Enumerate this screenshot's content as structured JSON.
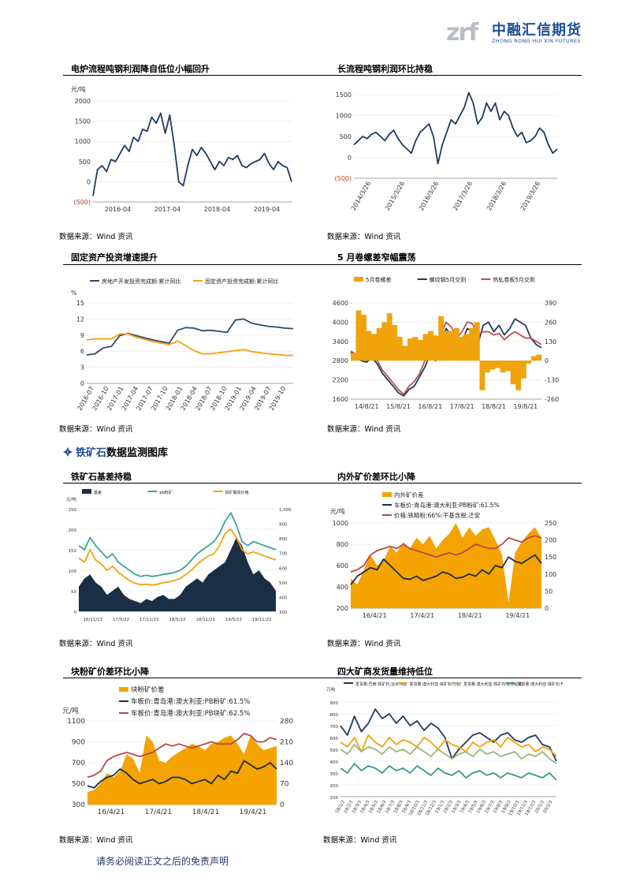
{
  "header": {
    "logo_mark": "zrf",
    "logo_cn": "中融汇信期货",
    "logo_en": "ZHONG RONG HUI XIN FUTURES"
  },
  "section": {
    "title_prefix": "铁矿石",
    "title_rest": "数据监测图库"
  },
  "footer": {
    "disclaimer": "请务必阅读正文之后的免责声明"
  },
  "charts": [
    {
      "id": "c1",
      "title": "电炉流程吨钢利润降自低位小幅回升",
      "source": "数据来源：Wind 资讯"
    },
    {
      "id": "c2",
      "title": "长流程吨钢利润环比持稳",
      "source": "数据来源：Wind 资讯"
    },
    {
      "id": "c3",
      "title": "固定资产投资增速提升",
      "source": "数据来源：Wind 资讯"
    },
    {
      "id": "c4",
      "title": "5 月卷螺差窄幅震荡",
      "source": "数据来源：Wind 资讯"
    },
    {
      "id": "c5",
      "title": "铁矿石基差持稳",
      "source": "数据来源：Wind 资讯"
    },
    {
      "id": "c6",
      "title": "内外矿价差环比小降",
      "source": "数据来源：Wind 资讯"
    },
    {
      "id": "c7",
      "title": "块粉矿价差环比小降",
      "source": "数据来源：Wind 资讯"
    },
    {
      "id": "c8",
      "title": "四大矿商发货量维持低位",
      "source": "数据来源：Wind 资讯"
    }
  ],
  "chart_data": [
    {
      "id": "c1",
      "type": "line",
      "unit": "元/吨",
      "ylim": [
        -500,
        2000
      ],
      "yticks": [
        "2000",
        "1500",
        "1000",
        "500",
        "0",
        "(500)"
      ],
      "xticks": [
        "2016-04",
        "2017-04",
        "2018-04",
        "2019-04"
      ],
      "series": [
        {
          "color": "#1f3b5c",
          "values": [
            -350,
            300,
            400,
            250,
            550,
            500,
            700,
            900,
            750,
            1100,
            1000,
            1300,
            1250,
            1600,
            1450,
            1700,
            1200,
            1650,
            900,
            0,
            -100,
            400,
            800,
            650,
            850,
            700,
            500,
            300,
            500,
            400,
            600,
            550,
            650,
            400,
            350,
            450,
            500,
            550,
            700,
            450,
            300,
            500,
            400,
            350,
            0
          ]
        }
      ]
    },
    {
      "id": "c2",
      "type": "line",
      "ylim": [
        -500,
        1500
      ],
      "yticks": [
        "1500",
        "1000",
        "500",
        "0",
        "(500)"
      ],
      "xticks": [
        "2014/3/26",
        "2015/3/26",
        "2016/3/26",
        "2017/3/26",
        "2018/3/26",
        "2019/3/26"
      ],
      "series": [
        {
          "color": "#1f3b5c",
          "values": [
            300,
            400,
            500,
            450,
            550,
            600,
            500,
            400,
            550,
            650,
            450,
            300,
            200,
            100,
            400,
            600,
            700,
            800,
            500,
            -150,
            300,
            600,
            900,
            800,
            1000,
            1200,
            1550,
            1300,
            800,
            950,
            1300,
            1100,
            1300,
            900,
            1100,
            1000,
            700,
            500,
            600,
            350,
            400,
            500,
            700,
            600,
            300,
            100,
            200
          ]
        }
      ]
    },
    {
      "id": "c3",
      "type": "line",
      "unit": "%",
      "ylim": [
        0,
        15
      ],
      "yticks": [
        "15",
        "12",
        "9",
        "6",
        "3",
        "0"
      ],
      "xticks": [
        "2016-07",
        "2016-10",
        "2017-01",
        "2017-04",
        "2017-07",
        "2017-10",
        "2018-01",
        "2018-04",
        "2018-07",
        "2018-10",
        "2019-01",
        "2019-04",
        "2019-07",
        "2019-10"
      ],
      "legend": [
        "房地产开发投资完成额:累计同比",
        "固定资产投资完成额:累计同比"
      ],
      "series": [
        {
          "name": "房地产开发投资完成额:累计同比",
          "color": "#2e4b6b",
          "values": [
            5.3,
            5.5,
            6.6,
            6.9,
            8.9,
            9.3,
            8.9,
            8.5,
            8.1,
            7.8,
            7.5,
            9.9,
            10.4,
            10.3,
            9.8,
            9.9,
            9.7,
            9.5,
            11.8,
            12.0,
            11.2,
            10.9,
            10.6,
            10.5,
            10.3,
            10.2
          ]
        },
        {
          "name": "固定资产投资完成额:累计同比",
          "color": "#f0a30a",
          "values": [
            8.1,
            8.3,
            8.3,
            8.3,
            9.2,
            9.2,
            8.6,
            8.2,
            7.8,
            7.5,
            7.2,
            7.9,
            7.0,
            6.1,
            5.5,
            5.5,
            5.7,
            5.9,
            6.1,
            6.3,
            5.9,
            5.7,
            5.5,
            5.4,
            5.2,
            5.2
          ]
        }
      ]
    },
    {
      "id": "c4",
      "type": "line+bar",
      "ylim": [
        1600,
        4600
      ],
      "yticks": [
        "4600",
        "4000",
        "3400",
        "2800",
        "2200",
        "1600"
      ],
      "y2ticks": [
        "390",
        "260",
        "130",
        "0",
        "-130",
        "-260"
      ],
      "xticks": [
        "14/8/21",
        "15/8/21",
        "16/8/21",
        "17/8/21",
        "18/8/21",
        "19/8/21"
      ],
      "legend": [
        "5月卷螺差",
        "螺纹钢5月交割",
        "热轧卷板5月交割"
      ],
      "series": [
        {
          "name": "螺纹钢5月交割",
          "color": "#1f3b5c",
          "values": [
            3050,
            2900,
            2800,
            2750,
            2900,
            2700,
            2400,
            2200,
            2000,
            1800,
            1700,
            1900,
            2000,
            2300,
            2600,
            3000,
            2800,
            3300,
            3800,
            3600,
            3200,
            3400,
            3800,
            3700,
            3300,
            3900,
            4000,
            3700,
            3900,
            3600,
            3800,
            4100,
            4000,
            3900,
            3500,
            3300,
            3200
          ]
        },
        {
          "name": "热轧卷板5月交割",
          "color": "#c0504d",
          "values": [
            3100,
            3000,
            2900,
            2800,
            2950,
            2800,
            2500,
            2300,
            2100,
            1900,
            1750,
            2000,
            2150,
            2400,
            2800,
            3100,
            3000,
            3600,
            4000,
            3850,
            3500,
            3700,
            4000,
            3950,
            3600,
            3700,
            3700,
            3600,
            3650,
            3450,
            3600,
            3700,
            3600,
            3500,
            3500,
            3400,
            3300
          ]
        },
        {
          "name": "5月卷螺差",
          "color": "#f0a30a",
          "type": "bar",
          "values": [
            50,
            340,
            310,
            200,
            180,
            220,
            260,
            320,
            240,
            160,
            100,
            150,
            160,
            140,
            180,
            200,
            170,
            300,
            200,
            200,
            220,
            160,
            180,
            220,
            260,
            -200,
            -80,
            -60,
            -50,
            -80,
            -70,
            -160,
            -200,
            -120,
            -20,
            30,
            40
          ]
        }
      ]
    },
    {
      "id": "c5",
      "type": "line+area",
      "unit": "元/吨",
      "ylim": [
        0,
        250
      ],
      "yticks": [
        "250",
        "200",
        "150",
        "100",
        "50",
        "0"
      ],
      "y2ticks": [
        "1,000",
        "900",
        "800",
        "700",
        "600",
        "500",
        "400",
        "300"
      ],
      "xticks": [
        "16/11/22",
        "17/5/22",
        "17/11/22",
        "18/5/22",
        "18/11/22",
        "19/5/22",
        "19/11/22"
      ],
      "legend": [
        "基差",
        "pb粉矿",
        "铁矿期货价格"
      ],
      "series": [
        {
          "name": "基差",
          "color": "#1a2e45",
          "type": "area",
          "values": [
            60,
            80,
            90,
            70,
            60,
            40,
            50,
            60,
            40,
            30,
            25,
            20,
            30,
            25,
            35,
            40,
            30,
            30,
            40,
            60,
            70,
            80,
            70,
            90,
            100,
            110,
            120,
            150,
            180,
            160,
            120,
            90,
            100,
            80,
            70,
            50
          ]
        },
        {
          "name": "pb粉矿",
          "color": "#3aa39a",
          "values": [
            160,
            150,
            180,
            160,
            145,
            130,
            140,
            120,
            110,
            100,
            90,
            85,
            88,
            85,
            87,
            90,
            92,
            95,
            100,
            110,
            125,
            140,
            150,
            160,
            170,
            190,
            220,
            240,
            210,
            170,
            160,
            170,
            165,
            160,
            155,
            150
          ]
        },
        {
          "name": "铁矿期货价格",
          "color": "#f0a30a",
          "values": [
            130,
            120,
            150,
            125,
            115,
            100,
            110,
            95,
            85,
            75,
            68,
            65,
            66,
            64,
            66,
            70,
            72,
            75,
            80,
            90,
            100,
            115,
            125,
            135,
            140,
            160,
            190,
            200,
            180,
            150,
            140,
            145,
            140,
            135,
            130,
            125
          ]
        }
      ]
    },
    {
      "id": "c6",
      "type": "line+area",
      "unit": "元/吨",
      "ylim": [
        200,
        1000
      ],
      "yticks": [
        "1000",
        "800",
        "600",
        "400",
        "200"
      ],
      "y2ticks": [
        "250",
        "200",
        "150",
        "100",
        "50",
        "0"
      ],
      "xticks": [
        "16/4/21",
        "17/4/21",
        "18/4/21",
        "19/4/21"
      ],
      "legend": [
        "内外矿价差",
        "车板价:青岛港:澳大利亚:PB粉矿:61.5%",
        "价格:铁精粉:66%:干基含税:迁安"
      ],
      "series": [
        {
          "name": "内外矿价差",
          "color": "#f5a300",
          "type": "area",
          "values": [
            480,
            420,
            560,
            700,
            600,
            650,
            780,
            720,
            820,
            760,
            860,
            800,
            880,
            760,
            840,
            900,
            1000,
            860,
            960,
            880,
            940,
            960,
            840,
            700,
            250,
            720,
            820,
            900,
            960,
            860
          ]
        },
        {
          "name": "车板价:青岛港:澳大利亚:PB粉矿:61.5%",
          "color": "#1a2e45",
          "values": [
            420,
            500,
            540,
            580,
            560,
            660,
            600,
            540,
            480,
            470,
            500,
            460,
            480,
            500,
            540,
            520,
            480,
            490,
            520,
            500,
            560,
            520,
            600,
            580,
            680,
            640,
            620,
            660,
            700,
            620
          ]
        },
        {
          "name": "价格:铁精粉:66%:干基含税:迁安",
          "color": "#b7474a",
          "values": [
            540,
            560,
            600,
            700,
            740,
            760,
            780,
            760,
            800,
            760,
            740,
            720,
            700,
            680,
            700,
            720,
            700,
            720,
            760,
            800,
            780,
            760,
            760,
            800,
            860,
            840,
            820,
            860,
            880,
            860
          ]
        }
      ]
    },
    {
      "id": "c7",
      "type": "line+area",
      "unit": "元/吨",
      "ylim": [
        300,
        1100
      ],
      "yticks": [
        "1100",
        "900",
        "700",
        "500",
        "300"
      ],
      "y2ticks": [
        "280",
        "210",
        "140",
        "70",
        "0"
      ],
      "xticks": [
        "16/4/21",
        "17/4/21",
        "18/4/21",
        "19/4/21"
      ],
      "legend": [
        "块粉矿价差",
        "车板价:青岛港:澳大利亚:PB粉矿:61.5%",
        "车板价:青岛港:澳大利亚:PB块矿:62.5%"
      ],
      "series": [
        {
          "name": "块粉矿价差",
          "color": "#f5a300",
          "type": "area",
          "values": [
            420,
            440,
            500,
            600,
            560,
            620,
            780,
            740,
            600,
            960,
            900,
            720,
            700,
            760,
            800,
            840,
            880,
            860,
            820,
            880,
            900,
            940,
            960,
            880,
            780,
            960,
            880,
            820,
            840,
            860
          ]
        },
        {
          "name": "车板价:青岛港:澳大利亚:PB粉矿:61.5%",
          "color": "#1a2e45",
          "values": [
            480,
            460,
            520,
            560,
            580,
            640,
            600,
            540,
            500,
            520,
            540,
            500,
            520,
            560,
            560,
            540,
            500,
            520,
            540,
            500,
            580,
            540,
            620,
            600,
            720,
            680,
            640,
            660,
            700,
            640
          ]
        },
        {
          "name": "车板价:青岛港:澳大利亚:PB块矿:62.5%",
          "color": "#b7474a",
          "values": [
            560,
            580,
            620,
            720,
            760,
            780,
            800,
            780,
            760,
            780,
            800,
            840,
            880,
            860,
            880,
            860,
            840,
            860,
            880,
            900,
            880,
            880,
            880,
            920,
            980,
            960,
            900,
            900,
            940,
            920
          ]
        }
      ]
    },
    {
      "id": "c8",
      "type": "line",
      "unit": "万吨",
      "ylim": [
        100,
        900
      ],
      "yticks": [
        "900",
        "800",
        "700",
        "600",
        "500",
        "400",
        "300",
        "200",
        "100"
      ],
      "xticks": [
        "18/1/3",
        "18/2/3",
        "18/3/3",
        "18/4/3",
        "18/5/3",
        "18/6/3",
        "18/7/3",
        "18/8/3",
        "18/9/3",
        "18/10/3",
        "18/11/3",
        "18/12/3",
        "19/1/3",
        "19/2/3",
        "19/3/3",
        "19/4/3",
        "19/5/3",
        "19/6/3",
        "19/7/3",
        "19/8/3",
        "19/9/3",
        "19/10/3",
        "19/11/3",
        "19/12/3",
        "20/1/3",
        "20/2/3"
      ],
      "legend": [
        "发货量:巴西:铁矿石:淡水河谷",
        "发货量:澳大利亚:铁矿石:力拓",
        "发货量:澳大利亚:铁矿石:必和必拓",
        "发货量:澳大利亚:铁矿石:FMG"
      ],
      "series": [
        {
          "name": "发货量:巴西:铁矿石:淡水河谷",
          "color": "#1f3b5c",
          "values": [
            700,
            620,
            780,
            650,
            720,
            840,
            760,
            800,
            720,
            780,
            700,
            740,
            660,
            720,
            680,
            600,
            420,
            500,
            560,
            620,
            640,
            600,
            560,
            620,
            640,
            580,
            560,
            600,
            620,
            540,
            520,
            400
          ]
        },
        {
          "name": "发货量:澳大利亚:铁矿石:力拓",
          "color": "#f0a30a",
          "values": [
            560,
            520,
            600,
            480,
            620,
            560,
            520,
            600,
            540,
            580,
            560,
            520,
            600,
            560,
            500,
            580,
            540,
            520,
            480,
            560,
            520,
            560,
            580,
            520,
            600,
            560,
            520,
            540,
            480,
            520,
            500,
            440
          ]
        },
        {
          "name": "发货量:澳大利亚:铁矿石:必和必拓",
          "color": "#9ab77a",
          "values": [
            500,
            460,
            540,
            480,
            520,
            500,
            460,
            520,
            480,
            500,
            460,
            520,
            480,
            440,
            500,
            460,
            420,
            460,
            480,
            440,
            500,
            460,
            480,
            440,
            460,
            480,
            420,
            460,
            440,
            480,
            420,
            380
          ]
        },
        {
          "name": "发货量:澳大利亚:铁矿石:FMG",
          "color": "#3a9a8a",
          "values": [
            340,
            300,
            380,
            320,
            360,
            340,
            300,
            360,
            320,
            340,
            300,
            360,
            320,
            280,
            340,
            300,
            280,
            320,
            260,
            300,
            320,
            280,
            300,
            260,
            300,
            280,
            260,
            300,
            280,
            260,
            300,
            240
          ]
        }
      ]
    }
  ]
}
